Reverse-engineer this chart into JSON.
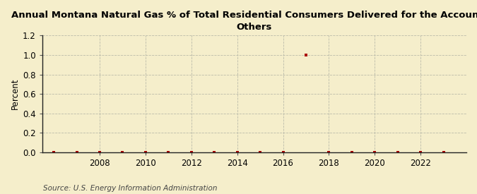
{
  "title": "Annual Montana Natural Gas % of Total Residential Consumers Delivered for the Account of\nOthers",
  "ylabel": "Percent",
  "source": "Source: U.S. Energy Information Administration",
  "background_color": "#f5eecb",
  "years": [
    2006,
    2007,
    2008,
    2009,
    2010,
    2011,
    2012,
    2013,
    2014,
    2015,
    2016,
    2017,
    2018,
    2019,
    2020,
    2021,
    2022,
    2023
  ],
  "values": [
    0.0,
    0.0,
    0.0,
    0.0,
    0.0,
    0.0,
    0.0,
    0.0,
    0.0,
    0.0,
    0.0,
    1.0,
    0.0,
    0.0,
    0.0,
    0.0,
    0.0,
    0.0
  ],
  "marker_color": "#aa0000",
  "ylim": [
    0.0,
    1.2
  ],
  "yticks": [
    0.0,
    0.2,
    0.4,
    0.6,
    0.8,
    1.0,
    1.2
  ],
  "xtick_years": [
    2008,
    2010,
    2012,
    2014,
    2016,
    2018,
    2020,
    2022
  ],
  "xlim": [
    2005.5,
    2024.0
  ],
  "title_fontsize": 9.5,
  "axis_fontsize": 8.5,
  "source_fontsize": 7.5
}
